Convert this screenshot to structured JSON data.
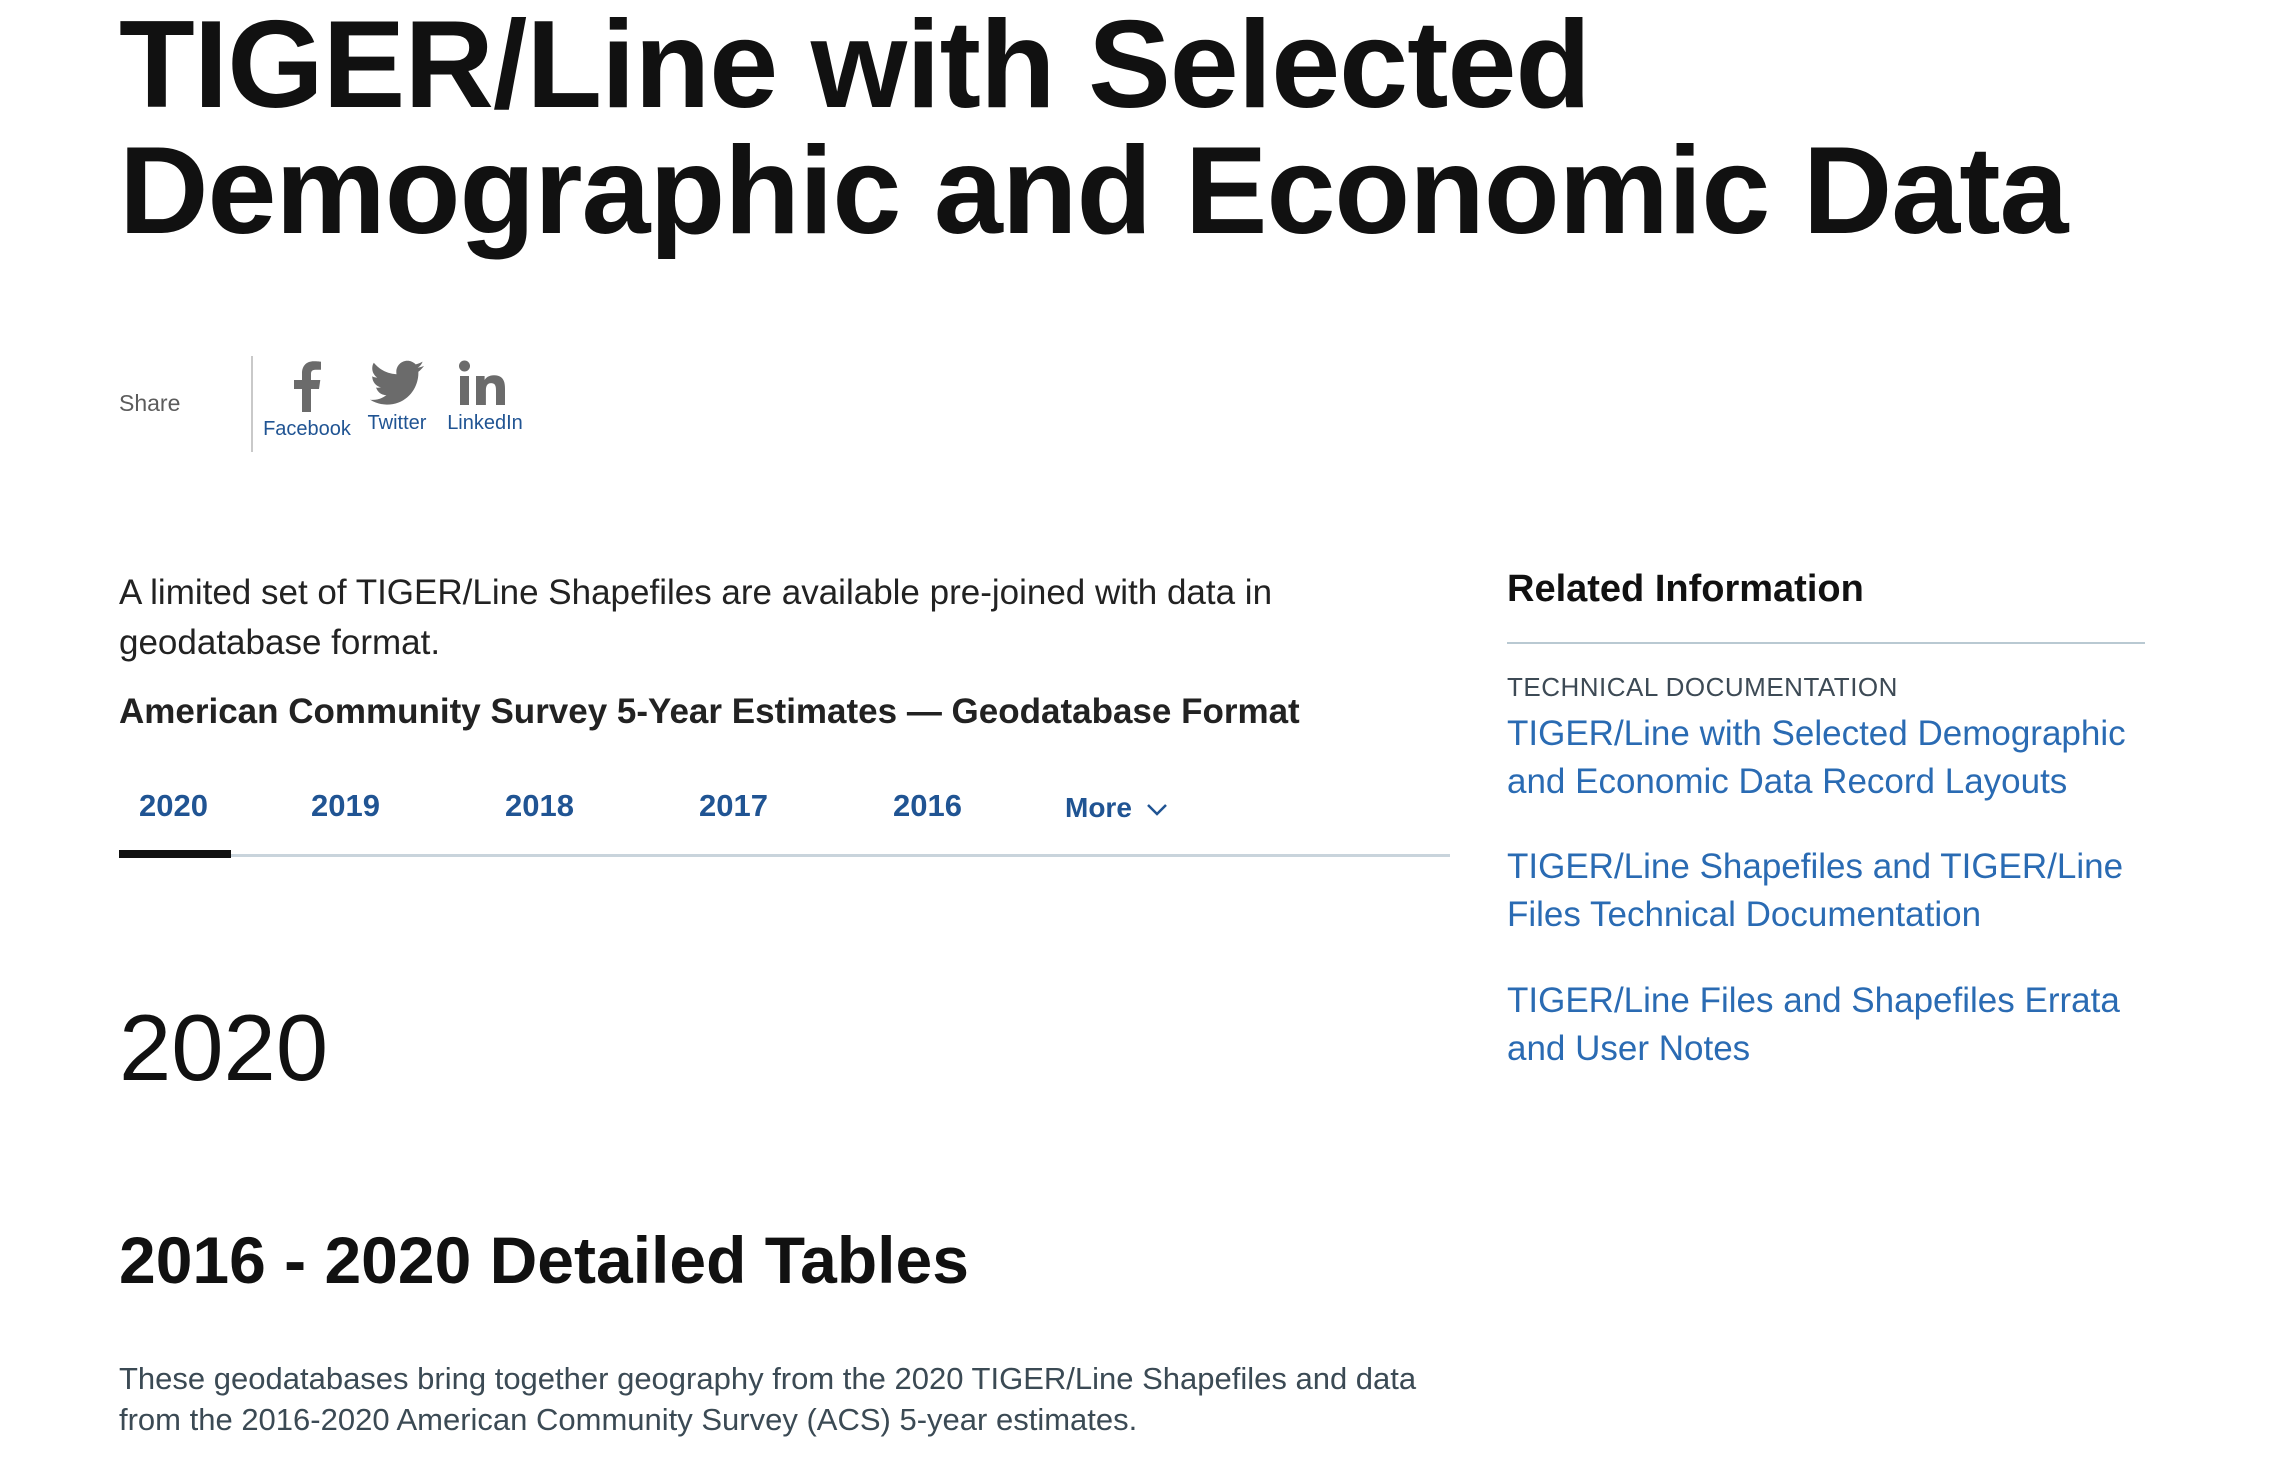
{
  "page": {
    "title": "TIGER/Line with Selected Demographic and Economic Data"
  },
  "share": {
    "label": "Share",
    "items": [
      {
        "label": "Facebook",
        "icon": "facebook-icon"
      },
      {
        "label": "Twitter",
        "icon": "twitter-icon"
      },
      {
        "label": "LinkedIn",
        "icon": "linkedin-icon"
      }
    ]
  },
  "main": {
    "intro": "A limited set of TIGER/Line Shapefiles are available pre-joined with data in geodatabase format.",
    "section_label": "American Community Survey 5-Year Estimates — Geodatabase Format",
    "tabs": [
      {
        "label": "2020",
        "active": true
      },
      {
        "label": "2019",
        "active": false
      },
      {
        "label": "2018",
        "active": false
      },
      {
        "label": "2017",
        "active": false
      },
      {
        "label": "2016",
        "active": false
      }
    ],
    "more_label": "More",
    "year_heading": "2020",
    "tables_heading": "2016 - 2020 Detailed Tables",
    "tables_description": "These geodatabases bring together geography from the 2020 TIGER/Line Shapefiles and data from the 2016-2020 American Community Survey (ACS) 5-year estimates."
  },
  "sidebar": {
    "heading": "Related Information",
    "category": "TECHNICAL DOCUMENTATION",
    "links": [
      {
        "label": "TIGER/Line with Selected Demographic and Economic Data Record Layouts"
      },
      {
        "label": "TIGER/Line Shapefiles and TIGER/Line Files Technical Documentation"
      },
      {
        "label": "TIGER/Line Files and Shapefiles Errata and User Notes"
      }
    ]
  },
  "colors": {
    "link": "#205493",
    "text": "#1b1b1b",
    "accent_underline": "#111111"
  }
}
